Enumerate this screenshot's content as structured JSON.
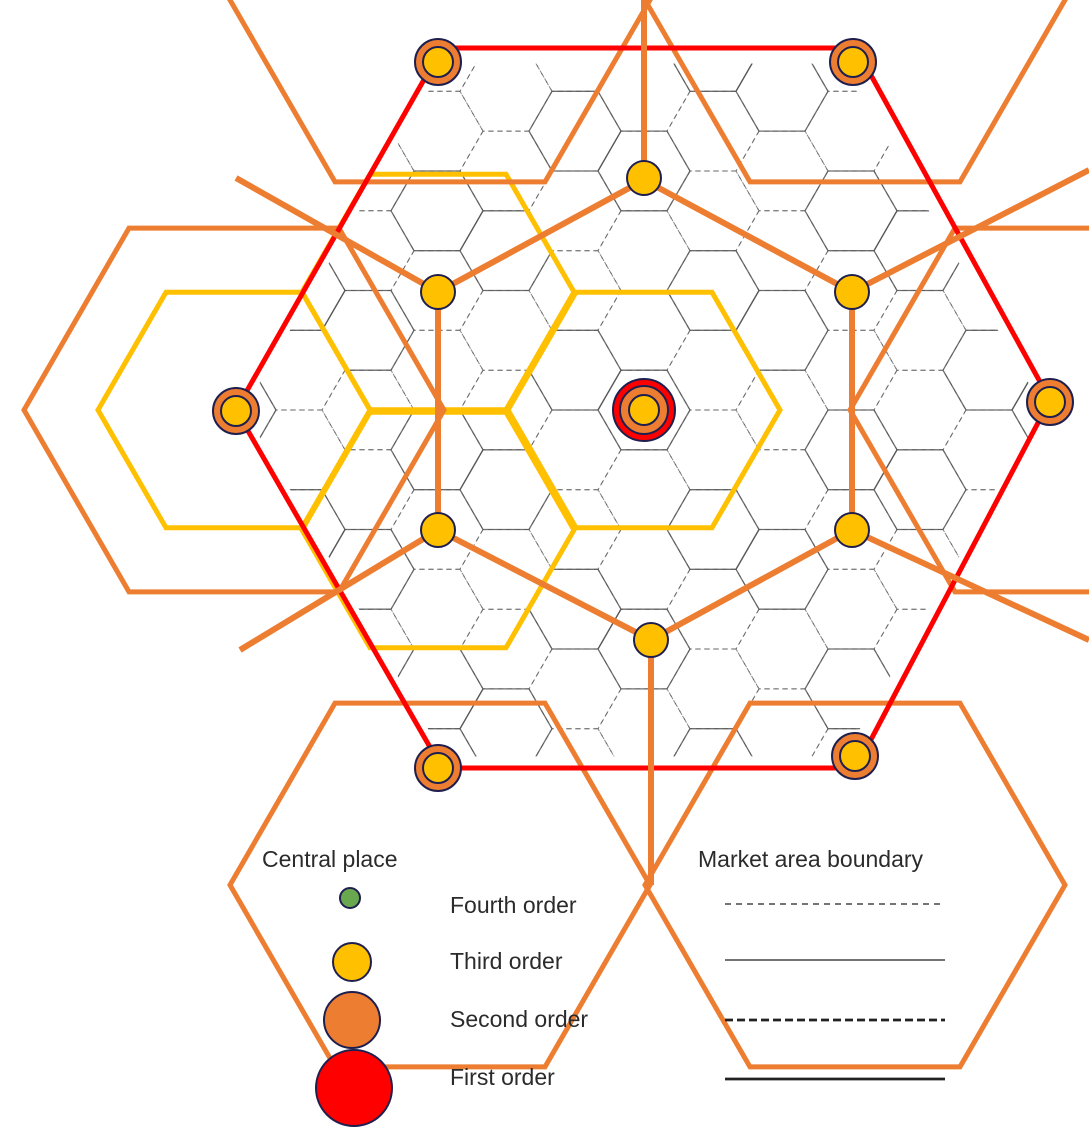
{
  "legend": {
    "central_place_heading": "Central place",
    "market_area_heading": "Market area boundary",
    "orders": [
      {
        "label": "Fourth order",
        "color": "#6aa84f",
        "line_style": "fine-dashed"
      },
      {
        "label": "Third order",
        "color": "#ffc000",
        "line_style": "thin-solid"
      },
      {
        "label": "Second order",
        "color": "#ed7d31",
        "line_style": "heavy-dashed"
      },
      {
        "label": "First order",
        "color": "#ff0000",
        "line_style": "heavy-solid"
      }
    ]
  },
  "colors": {
    "first_order": "#ff0000",
    "second_order": "#ed7d31",
    "third_order": "#ffc000",
    "fourth_order": "#6aa84f",
    "node_outline": "#1f1f4f",
    "grid_line": "#555555"
  }
}
